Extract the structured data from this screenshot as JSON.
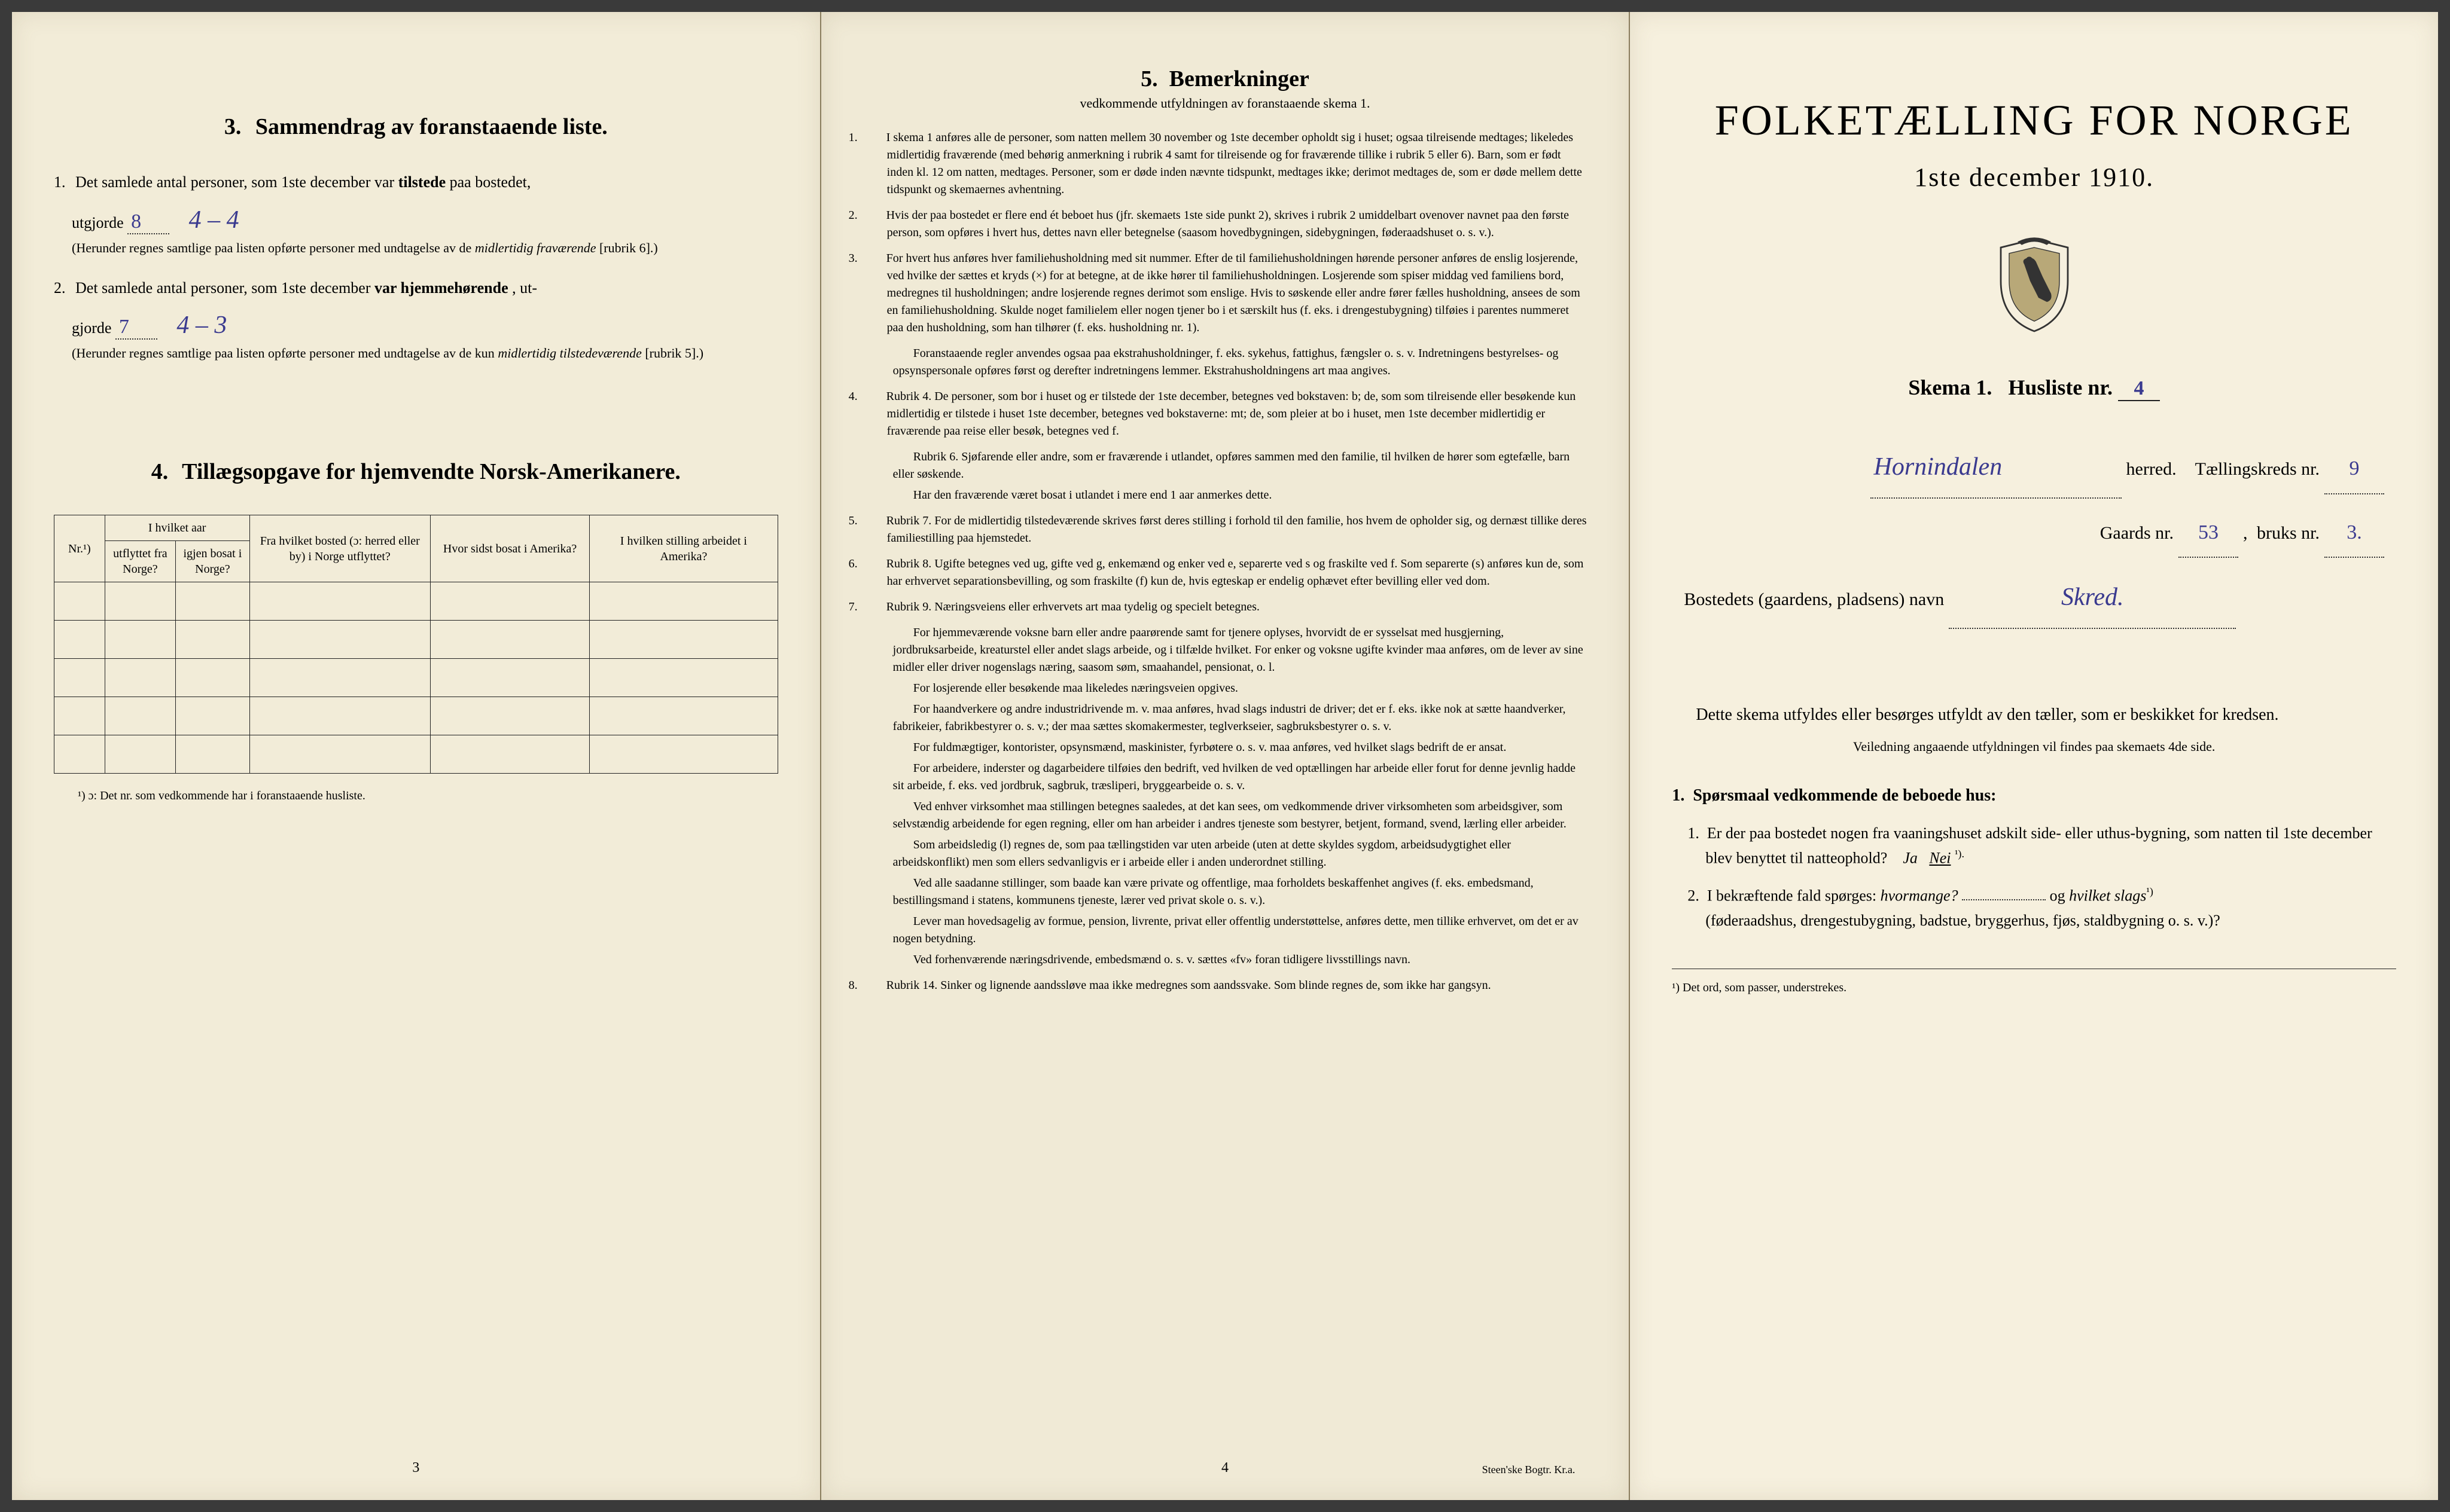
{
  "page3": {
    "section3": {
      "num": "3.",
      "title": "Sammendrag av foranstaaende liste.",
      "item1_lead": "1.",
      "item1_text_a": "Det samlede antal personer, som 1ste december var ",
      "item1_bold": "tilstede",
      "item1_text_b": " paa bostedet,",
      "item1_line2": "utgjorde",
      "item1_val": "8",
      "item1_hand": "4 – 4",
      "item1_paren": "(Herunder regnes samtlige paa listen opførte personer med undtagelse av de ",
      "item1_paren_it": "midlertidig fraværende",
      "item1_paren_end": " [rubrik 6].)",
      "item2_lead": "2.",
      "item2_text_a": "Det samlede antal personer, som 1ste december ",
      "item2_bold": "var hjemmehørende",
      "item2_text_b": ", ut-",
      "item2_line2": "gjorde",
      "item2_val": "7",
      "item2_hand": "4 – 3",
      "item2_paren": "(Herunder regnes samtlige paa listen opførte personer med undtagelse av de kun ",
      "item2_paren_it": "midlertidig tilstedeværende",
      "item2_paren_end": " [rubrik 5].)"
    },
    "section4": {
      "num": "4.",
      "title": "Tillægsopgave for hjemvendte Norsk-Amerikanere.",
      "col_nr": "Nr.¹)",
      "col_aar": "I hvilket aar",
      "col_aar_a": "utflyttet fra Norge?",
      "col_aar_b": "igjen bosat i Norge?",
      "col_fra": "Fra hvilket bosted (ɔ: herred eller by) i Norge utflyttet?",
      "col_hvor": "Hvor sidst bosat i Amerika?",
      "col_stilling": "I hvilken stilling arbeidet i Amerika?",
      "footnote": "¹) ɔ: Det nr. som vedkommende har i foranstaaende husliste."
    },
    "pagenum": "3"
  },
  "page4": {
    "num": "5.",
    "title": "Bemerkninger",
    "sub": "vedkommende utfyldningen av foranstaaende skema 1.",
    "items": [
      {
        "n": "1.",
        "t": "I skema 1 anføres alle de personer, som natten mellem 30 november og 1ste december opholdt sig i huset; ogsaa tilreisende medtages; likeledes midlertidig fraværende (med behørig anmerkning i rubrik 4 samt for tilreisende og for fraværende tillike i rubrik 5 eller 6). Barn, som er født inden kl. 12 om natten, medtages. Personer, som er døde inden nævnte tidspunkt, medtages ikke; derimot medtages de, som er døde mellem dette tidspunkt og skemaernes avhentning."
      },
      {
        "n": "2.",
        "t": "Hvis der paa bostedet er flere end ét beboet hus (jfr. skemaets 1ste side punkt 2), skrives i rubrik 2 umiddelbart ovenover navnet paa den første person, som opføres i hvert hus, dettes navn eller betegnelse (saasom hovedbygningen, sidebygningen, føderaadshuset o. s. v.)."
      },
      {
        "n": "3.",
        "t": "For hvert hus anføres hver familiehusholdning med sit nummer. Efter de til familiehusholdningen hørende personer anføres de enslig losjerende, ved hvilke der sættes et kryds (×) for at betegne, at de ikke hører til familiehusholdningen. Losjerende som spiser middag ved familiens bord, medregnes til husholdningen; andre losjerende regnes derimot som enslige. Hvis to søskende eller andre fører fælles husholdning, ansees de som en familiehusholdning. Skulde noget familielem eller nogen tjener bo i et særskilt hus (f. eks. i drengestubygning) tilføies i parentes nummeret paa den husholdning, som han tilhører (f. eks. husholdning nr. 1).",
        "p": [
          "Foranstaaende regler anvendes ogsaa paa ekstrahusholdninger, f. eks. sykehus, fattighus, fængsler o. s. v. Indretningens bestyrelses- og opsynspersonale opføres først og derefter indretningens lemmer. Ekstrahusholdningens art maa angives."
        ]
      },
      {
        "n": "4.",
        "t": "Rubrik 4. De personer, som bor i huset og er tilstede der 1ste december, betegnes ved bokstaven: b; de, som som tilreisende eller besøkende kun midlertidig er tilstede i huset 1ste december, betegnes ved bokstaverne: mt; de, som pleier at bo i huset, men 1ste december midlertidig er fraværende paa reise eller besøk, betegnes ved f.",
        "p": [
          "Rubrik 6. Sjøfarende eller andre, som er fraværende i utlandet, opføres sammen med den familie, til hvilken de hører som egtefælle, barn eller søskende.",
          "Har den fraværende været bosat i utlandet i mere end 1 aar anmerkes dette."
        ]
      },
      {
        "n": "5.",
        "t": "Rubrik 7. For de midlertidig tilstedeværende skrives først deres stilling i forhold til den familie, hos hvem de opholder sig, og dernæst tillike deres familiestilling paa hjemstedet."
      },
      {
        "n": "6.",
        "t": "Rubrik 8. Ugifte betegnes ved ug, gifte ved g, enkemænd og enker ved e, separerte ved s og fraskilte ved f. Som separerte (s) anføres kun de, som har erhvervet separationsbevilling, og som fraskilte (f) kun de, hvis egteskap er endelig ophævet efter bevilling eller ved dom."
      },
      {
        "n": "7.",
        "t": "Rubrik 9. Næringsveiens eller erhvervets art maa tydelig og specielt betegnes.",
        "p": [
          "For hjemmeværende voksne barn eller andre paarørende samt for tjenere oplyses, hvorvidt de er sysselsat med husgjerning, jordbruksarbeide, kreaturstel eller andet slags arbeide, og i tilfælde hvilket. For enker og voksne ugifte kvinder maa anføres, om de lever av sine midler eller driver nogenslags næring, saasom søm, smaahandel, pensionat, o. l.",
          "For losjerende eller besøkende maa likeledes næringsveien opgives.",
          "For haandverkere og andre industridrivende m. v. maa anføres, hvad slags industri de driver; det er f. eks. ikke nok at sætte haandverker, fabrikeier, fabrikbestyrer o. s. v.; der maa sættes skomakermester, teglverkseier, sagbruksbestyrer o. s. v.",
          "For fuldmægtiger, kontorister, opsynsmænd, maskinister, fyrbøtere o. s. v. maa anføres, ved hvilket slags bedrift de er ansat.",
          "For arbeidere, inderster og dagarbeidere tilføies den bedrift, ved hvilken de ved optællingen har arbeide eller forut for denne jevnlig hadde sit arbeide, f. eks. ved jordbruk, sagbruk, træsliperi, bryggearbeide o. s. v.",
          "Ved enhver virksomhet maa stillingen betegnes saaledes, at det kan sees, om vedkommende driver virksomheten som arbeidsgiver, som selvstændig arbeidende for egen regning, eller om han arbeider i andres tjeneste som bestyrer, betjent, formand, svend, lærling eller arbeider.",
          "Som arbeidsledig (l) regnes de, som paa tællingstiden var uten arbeide (uten at dette skyldes sygdom, arbeidsudygtighet eller arbeidskonflikt) men som ellers sedvanligvis er i arbeide eller i anden underordnet stilling.",
          "Ved alle saadanne stillinger, som baade kan være private og offentlige, maa forholdets beskaffenhet angives (f. eks. embedsmand, bestillingsmand i statens, kommunens tjeneste, lærer ved privat skole o. s. v.).",
          "Lever man hovedsagelig av formue, pension, livrente, privat eller offentlig understøttelse, anføres dette, men tillike erhvervet, om det er av nogen betydning.",
          "Ved forhenværende næringsdrivende, embedsmænd o. s. v. sættes «fv» foran tidligere livsstillings navn."
        ]
      },
      {
        "n": "8.",
        "t": "Rubrik 14. Sinker og lignende aandssløve maa ikke medregnes som aandssvake. Som blinde regnes de, som ikke har gangsyn."
      }
    ],
    "pagenum": "4",
    "printer": "Steen'ske Bogtr. Kr.a."
  },
  "page1": {
    "title": "FOLKETÆLLING FOR NORGE",
    "date": "1ste december 1910.",
    "skema_a": "Skema 1.",
    "skema_b": "Husliste nr.",
    "husliste_nr": "4",
    "herred_val": "Hornindalen",
    "herred_lbl": "herred.",
    "tkreds_lbl": "Tællingskreds nr.",
    "tkreds_val": "9",
    "gaards_lbl": "Gaards nr.",
    "gaards_val": "53",
    "bruks_lbl": "bruks nr.",
    "bruks_val": "3.",
    "bosted_lbl": "Bostedets (gaardens, pladsens) navn",
    "bosted_val": "Skred.",
    "intro": "Dette skema utfyldes eller besørges utfyldt av den tæller, som er beskikket for kredsen.",
    "intro_small": "Veiledning angaaende utfyldningen vil findes paa skemaets 4de side.",
    "q_head_n": "1.",
    "q_head": "Spørsmaal vedkommende de beboede hus:",
    "q1_n": "1.",
    "q1": "Er der paa bostedet nogen fra vaaningshuset adskilt side- eller uthus-bygning, som natten til 1ste december blev benyttet til natteophold?",
    "q1_ja": "Ja",
    "q1_nei": "Nei",
    "q1_sup": "¹).",
    "q2_n": "2.",
    "q2_a": "I bekræftende fald spørges: ",
    "q2_it1": "hvormange?",
    "q2_mid": "og",
    "q2_it2": "hvilket slags",
    "q2_sup": "¹)",
    "q2_b": "(føderaadshus, drengestubygning, badstue, bryggerhus, fjøs, staldbygning o. s. v.)?",
    "footnote": "¹) Det ord, som passer, understrekes."
  }
}
